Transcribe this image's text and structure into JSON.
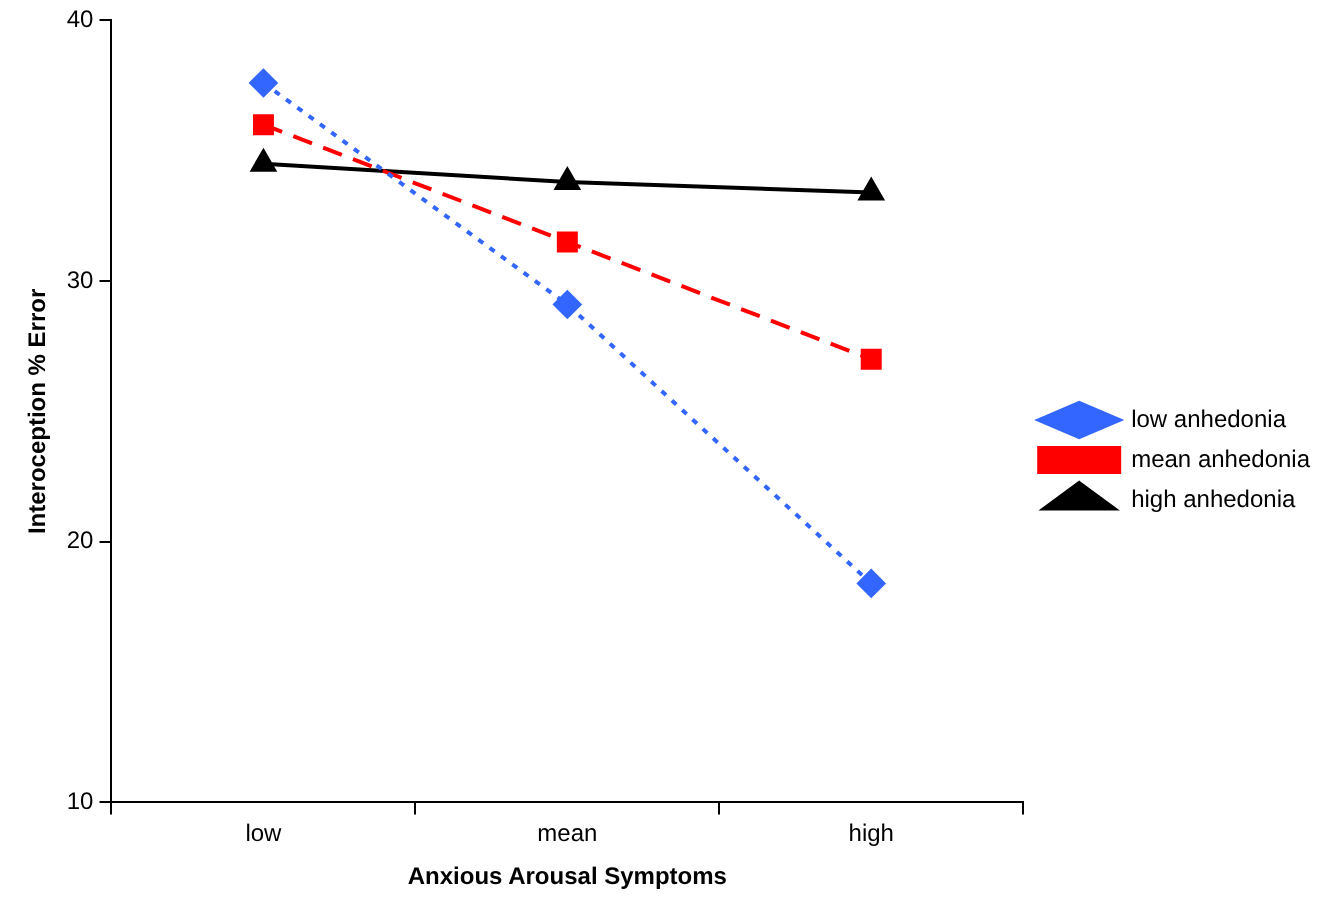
{
  "chart_data": {
    "type": "line",
    "xlabel": "Anxious Arousal Symptoms",
    "ylabel": "Interoception % Error",
    "categories": [
      "low",
      "mean",
      "high"
    ],
    "series": [
      {
        "name": "low anhedonia",
        "color": "#3366ff",
        "values": [
          37.6,
          29.1,
          18.4
        ],
        "marker": "diamond",
        "line_style": "dotted"
      },
      {
        "name": "mean anhedonia",
        "color": "#ff0000",
        "values": [
          36.0,
          31.5,
          27.0
        ],
        "marker": "square",
        "line_style": "dashed"
      },
      {
        "name": "high anhedonia",
        "color": "#000000",
        "values": [
          34.5,
          33.8,
          33.4
        ],
        "marker": "triangle",
        "line_style": "solid"
      }
    ],
    "ylim": [
      10,
      40
    ],
    "yticks": [
      10,
      20,
      30,
      40
    ],
    "grid": false,
    "legend": "right"
  }
}
